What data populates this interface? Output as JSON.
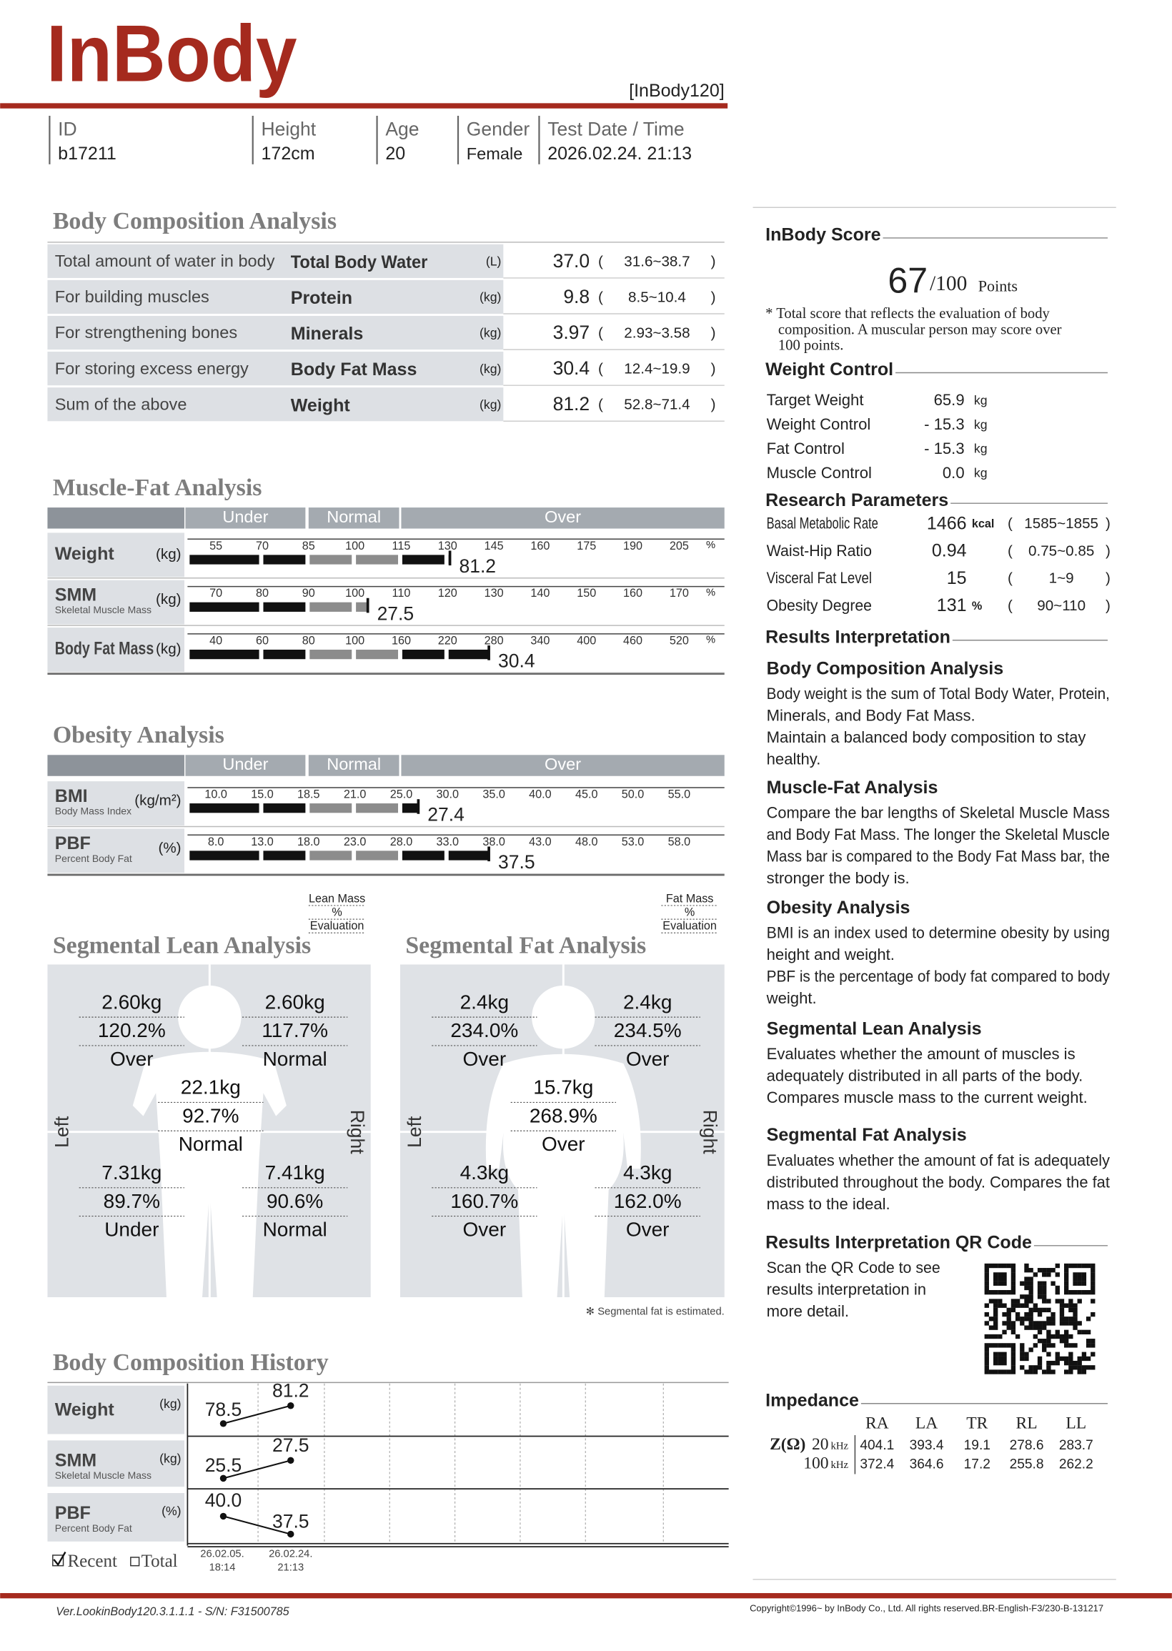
{
  "header": {
    "logo": "InBody",
    "model": "[InBody120]",
    "fields": [
      {
        "label": "ID",
        "value": "b17211"
      },
      {
        "label": "Height",
        "value": "172cm"
      },
      {
        "label": "Age",
        "value": "20"
      },
      {
        "label": "Gender",
        "value": "Female"
      },
      {
        "label": "Test Date / Time",
        "value": "2026.02.24. 21:13"
      }
    ]
  },
  "body_composition": {
    "title": "Body Composition Analysis",
    "paren_open": "(",
    "paren_close": ")",
    "rows": [
      {
        "description": "Total amount of water in body",
        "name": "Total Body Water",
        "unit": "(L)",
        "value": "37.0",
        "range": "31.6~38.7"
      },
      {
        "description": "For building muscles",
        "name": "Protein",
        "unit": "(kg)",
        "value": "9.8",
        "range": "8.5~10.4"
      },
      {
        "description": "For strengthening bones",
        "name": "Minerals",
        "unit": "(kg)",
        "value": "3.97",
        "range": "2.93~3.58"
      },
      {
        "description": "For storing excess energy",
        "name": "Body Fat Mass",
        "unit": "(kg)",
        "value": "30.4",
        "range": "12.4~19.9"
      },
      {
        "description": "Sum of the above",
        "name": "Weight",
        "unit": "(kg)",
        "value": "81.2",
        "range": "52.8~71.4"
      }
    ]
  },
  "muscle_fat": {
    "title": "Muscle-Fat Analysis",
    "bands": [
      "Under",
      "Normal",
      "Over"
    ],
    "rows": [
      {
        "name": "Weight",
        "unit": "(kg)",
        "ticks": [
          "55",
          "70",
          "85",
          "100",
          "115",
          "130",
          "145",
          "160",
          "175",
          "190",
          "205"
        ],
        "percent_sign": "%",
        "value": "81.2"
      },
      {
        "name": "SMM",
        "subname": "Skeletal Muscle Mass",
        "unit": "(kg)",
        "ticks": [
          "70",
          "80",
          "90",
          "100",
          "110",
          "120",
          "130",
          "140",
          "150",
          "160",
          "170"
        ],
        "percent_sign": "%",
        "value": "27.5"
      },
      {
        "name": "Body Fat Mass",
        "unit": "(kg)",
        "ticks": [
          "40",
          "60",
          "80",
          "100",
          "160",
          "220",
          "280",
          "340",
          "400",
          "460",
          "520"
        ],
        "percent_sign": "%",
        "value": "30.4"
      }
    ]
  },
  "obesity": {
    "title": "Obesity Analysis",
    "bands": [
      "Under",
      "Normal",
      "Over"
    ],
    "rows": [
      {
        "name": "BMI",
        "subname": "Body Mass Index",
        "unit": "(kg/m²)",
        "ticks": [
          "10.0",
          "15.0",
          "18.5",
          "21.0",
          "25.0",
          "30.0",
          "35.0",
          "40.0",
          "45.0",
          "50.0",
          "55.0"
        ],
        "value": "27.4"
      },
      {
        "name": "PBF",
        "subname": "Percent Body Fat",
        "unit": "(%)",
        "ticks": [
          "8.0",
          "13.0",
          "18.0",
          "23.0",
          "28.0",
          "33.0",
          "38.0",
          "43.0",
          "48.0",
          "53.0",
          "58.0"
        ],
        "value": "37.5"
      }
    ]
  },
  "segmental_lean": {
    "title": "Segmental Lean Analysis",
    "legend": [
      "Lean Mass",
      "%",
      "Evaluation"
    ],
    "left": "Left",
    "right": "Right",
    "segments": [
      {
        "mass": "2.60kg",
        "percent": "120.2%",
        "evaluation": "Over"
      },
      {
        "mass": "2.60kg",
        "percent": "117.7%",
        "evaluation": "Normal"
      },
      {
        "mass": "22.1kg",
        "percent": "92.7%",
        "evaluation": "Normal"
      },
      {
        "mass": "7.31kg",
        "percent": "89.7%",
        "evaluation": "Under"
      },
      {
        "mass": "7.41kg",
        "percent": "90.6%",
        "evaluation": "Normal"
      }
    ]
  },
  "segmental_fat": {
    "title": "Segmental Fat Analysis",
    "legend": [
      "Fat Mass",
      "%",
      "Evaluation"
    ],
    "left": "Left",
    "right": "Right",
    "note": "✻ Segmental fat is estimated.",
    "segments": [
      {
        "mass": "2.4kg",
        "percent": "234.0%",
        "evaluation": "Over"
      },
      {
        "mass": "2.4kg",
        "percent": "234.5%",
        "evaluation": "Over"
      },
      {
        "mass": "15.7kg",
        "percent": "268.9%",
        "evaluation": "Over"
      },
      {
        "mass": "4.3kg",
        "percent": "160.7%",
        "evaluation": "Over"
      },
      {
        "mass": "4.3kg",
        "percent": "162.0%",
        "evaluation": "Over"
      }
    ]
  },
  "history": {
    "title": "Body Composition History",
    "rows": [
      {
        "name": "Weight",
        "unit": "(kg)",
        "values": [
          "78.5",
          "81.2"
        ]
      },
      {
        "name": "SMM",
        "subname": "Skeletal Muscle Mass",
        "unit": "(kg)",
        "values": [
          "25.5",
          "27.5"
        ]
      },
      {
        "name": "PBF",
        "subname": "Percent Body Fat",
        "unit": "(%)",
        "values": [
          "40.0",
          "37.5"
        ]
      }
    ],
    "dates": [
      {
        "date": "26.02.05.",
        "time": "18:14"
      },
      {
        "date": "26.02.24.",
        "time": "21:13"
      }
    ],
    "options": [
      "Recent",
      "Total"
    ]
  },
  "score": {
    "title": "InBody Score",
    "value": "67",
    "max": "/100",
    "unit": "Points",
    "note": [
      "* Total score that reflects the evaluation of body",
      "composition. A muscular person may score over",
      "100 points."
    ]
  },
  "weight_control": {
    "title": "Weight Control",
    "rows": [
      {
        "label": "Target Weight",
        "value": "65.9",
        "unit": "kg"
      },
      {
        "label": "Weight Control",
        "value": "- 15.3",
        "unit": "kg"
      },
      {
        "label": "Fat Control",
        "value": "- 15.3",
        "unit": "kg"
      },
      {
        "label": "Muscle Control",
        "value": "0.0",
        "unit": "kg"
      }
    ]
  },
  "research": {
    "title": "Research Parameters",
    "paren_open": "(",
    "paren_close": ")",
    "rows": [
      {
        "label": "Basal Metabolic Rate",
        "value": "1466",
        "unit": "kcal",
        "range": "1585~1855"
      },
      {
        "label": "Waist-Hip Ratio",
        "value": "0.94",
        "range": "0.75~0.85"
      },
      {
        "label": "Visceral Fat Level",
        "value": "15",
        "range": "1~9"
      },
      {
        "label": "Obesity Degree",
        "value": "131",
        "unit": "%",
        "range": "90~110"
      }
    ]
  },
  "interpretation": {
    "title": "Results Interpretation",
    "items": [
      {
        "heading": "Body Composition Analysis",
        "lines": [
          "Body weight is the sum of Total Body Water, Protein,",
          "Minerals, and Body Fat Mass.",
          "Maintain a balanced body composition to stay",
          "healthy."
        ]
      },
      {
        "heading": "Muscle-Fat Analysis",
        "lines": [
          "Compare the bar lengths of Skeletal Muscle Mass",
          "and Body Fat Mass. The longer the Skeletal Muscle",
          "Mass bar is compared to the Body Fat Mass bar, the",
          "stronger the body is."
        ]
      },
      {
        "heading": "Obesity Analysis",
        "lines": [
          "BMI is an index used to determine obesity by using",
          "height and weight.",
          "PBF is the percentage of body fat compared to body",
          "weight."
        ]
      },
      {
        "heading": "Segmental Lean Analysis",
        "lines": [
          "Evaluates whether the amount of muscles is",
          "adequately distributed in all parts of the body.",
          "Compares muscle mass to the current weight."
        ]
      },
      {
        "heading": "Segmental Fat Analysis",
        "lines": [
          "Evaluates whether the amount of fat is adequately",
          "distributed throughout the body. Compares the fat",
          "mass to the ideal."
        ]
      }
    ]
  },
  "qr": {
    "title": "Results Interpretation QR Code",
    "lines": [
      "Scan the QR Code to see",
      "results interpretation in",
      "more detail."
    ]
  },
  "impedance": {
    "title": "Impedance",
    "symbol": "Z(Ω)",
    "columns": [
      "RA",
      "LA",
      "TR",
      "RL",
      "LL"
    ],
    "rows": [
      {
        "frequency": "20",
        "unit": "kHz",
        "values": [
          "404.1",
          "393.4",
          "19.1",
          "278.6",
          "283.7"
        ]
      },
      {
        "frequency": "100",
        "unit": "kHz",
        "values": [
          "372.4",
          "364.6",
          "17.2",
          "255.8",
          "262.2"
        ]
      }
    ]
  },
  "footer": {
    "version": "Ver.LookinBody120.3.1.1.1 - S/N: F31500785",
    "copyright": "Copyright©1996~ by InBody Co., Ltd. All rights reserved.BR-English-F3/230-B-131217"
  }
}
